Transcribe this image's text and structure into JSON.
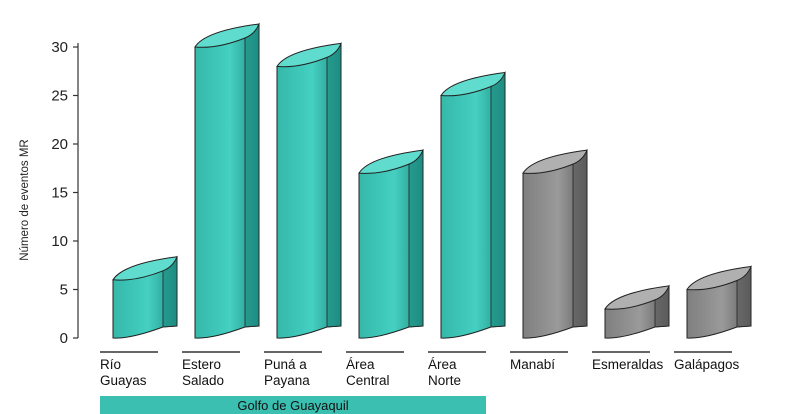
{
  "chart_data": {
    "type": "bar",
    "ylabel": "Número de eventos MR",
    "xlabel": "",
    "ylim": [
      0,
      30
    ],
    "yticks": [
      0,
      5,
      10,
      15,
      20,
      25,
      30
    ],
    "grid": false,
    "categories": [
      {
        "lines": [
          "Río",
          "Guayas"
        ],
        "value": 6,
        "color": "#3bbfb0"
      },
      {
        "lines": [
          "Estero",
          "Salado"
        ],
        "value": 30,
        "color": "#3bbfb0"
      },
      {
        "lines": [
          "Puná a",
          "Payana"
        ],
        "value": 28,
        "color": "#3bbfb0"
      },
      {
        "lines": [
          "Área",
          "Central"
        ],
        "value": 17,
        "color": "#3bbfb0"
      },
      {
        "lines": [
          "Área",
          "Norte"
        ],
        "value": 25,
        "color": "#3bbfb0"
      },
      {
        "lines": [
          "Manabí"
        ],
        "value": 17,
        "color": "#8c8c8c"
      },
      {
        "lines": [
          "Esmeraldas"
        ],
        "value": 3,
        "color": "#8c8c8c"
      },
      {
        "lines": [
          "Galápagos"
        ],
        "value": 5,
        "color": "#8c8c8c"
      }
    ],
    "group_label": "Golfo de Guayaquil",
    "group_color": "#3bbfb0"
  }
}
